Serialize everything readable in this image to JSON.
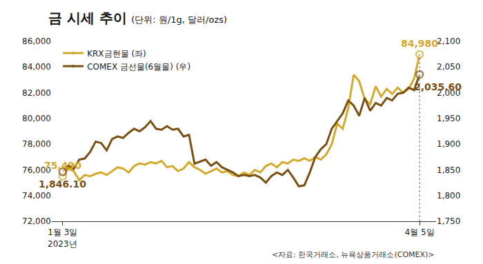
{
  "chart_data": {
    "type": "line",
    "title": "금 시세 추이",
    "subtitle": "(단위: 원/1g, 달러/ozs)",
    "source": "<자료: 한국거래소, 뉴욕상품거래소(COMEX)>",
    "x_sublabel": "2023년",
    "categories": [
      "1월 3일",
      null,
      null,
      null,
      null,
      null,
      null,
      null,
      null,
      null,
      null,
      null,
      null,
      null,
      null,
      null,
      null,
      null,
      null,
      null,
      null,
      null,
      null,
      null,
      null,
      null,
      null,
      null,
      null,
      null,
      null,
      null,
      null,
      null,
      null,
      null,
      null,
      null,
      null,
      null,
      null,
      null,
      null,
      null,
      null,
      null,
      null,
      null,
      null,
      null,
      null,
      null,
      null,
      null,
      null,
      null,
      null,
      null,
      null,
      null,
      null,
      null,
      null,
      null,
      null,
      "4월 5일"
    ],
    "series": [
      {
        "name": "KRX금현물 (좌)",
        "color": "#d4a82a",
        "axis": "y",
        "values": [
          75490,
          76100,
          75900,
          75200,
          75600,
          75500,
          75700,
          75800,
          75600,
          75900,
          76200,
          76100,
          75800,
          76300,
          76500,
          76400,
          76600,
          76500,
          76700,
          76200,
          76300,
          75900,
          76100,
          76600,
          76200,
          76000,
          75700,
          75900,
          76100,
          75800,
          75900,
          75600,
          75500,
          75800,
          75600,
          76000,
          75800,
          76300,
          76500,
          76200,
          76600,
          76500,
          76800,
          76700,
          76900,
          76700,
          77000,
          76800,
          77200,
          78000,
          79600,
          79200,
          80800,
          83400,
          82900,
          81500,
          81100,
          82500,
          81700,
          82300,
          81900,
          82400,
          82000,
          82300,
          83100,
          84980
        ]
      },
      {
        "name": "COMEX 금선물(6월물) (우)",
        "color": "#7a5012",
        "axis": "y2",
        "values": [
          1846.1,
          1858,
          1852,
          1870,
          1872,
          1885,
          1905,
          1902,
          1888,
          1910,
          1915,
          1912,
          1922,
          1930,
          1925,
          1933,
          1945,
          1930,
          1928,
          1935,
          1928,
          1930,
          1915,
          1918,
          1862,
          1866,
          1870,
          1858,
          1865,
          1855,
          1850,
          1845,
          1838,
          1840,
          1838,
          1840,
          1835,
          1825,
          1838,
          1845,
          1840,
          1850,
          1835,
          1818,
          1820,
          1845,
          1875,
          1890,
          1900,
          1930,
          1945,
          1960,
          1985,
          1975,
          1955,
          1990,
          1965,
          1980,
          1975,
          1990,
          1985,
          1998,
          2000,
          2010,
          2005,
          2035.6
        ]
      }
    ],
    "point_labels": [
      {
        "series": 0,
        "x": 0,
        "label": "75,490"
      },
      {
        "series": 1,
        "x": 0,
        "label": "1,846.10"
      },
      {
        "series": 0,
        "x": 65,
        "label": "84,980"
      },
      {
        "series": 1,
        "x": 65,
        "label": "2,035.60"
      }
    ],
    "ylim": [
      72000,
      86000
    ],
    "yticks": [
      {
        "value": 72000,
        "label": "72,000"
      },
      {
        "value": 74000,
        "label": "74,000"
      },
      {
        "value": 76000,
        "label": "76,000"
      },
      {
        "value": 78000,
        "label": "78,000"
      },
      {
        "value": 80000,
        "label": "80,000"
      },
      {
        "value": 82000,
        "label": "82,000"
      },
      {
        "value": 84000,
        "label": "84,000"
      },
      {
        "value": 86000,
        "label": "86,000"
      }
    ],
    "y2lim": [
      1750,
      2100
    ],
    "y2ticks": [
      {
        "value": 1750,
        "label": "1,750"
      },
      {
        "value": 1800,
        "label": "1,800"
      },
      {
        "value": 1850,
        "label": "1,850"
      },
      {
        "value": 1900,
        "label": "1,900"
      },
      {
        "value": 1950,
        "label": "1,950"
      },
      {
        "value": 2000,
        "label": "2,000"
      },
      {
        "value": 2050,
        "label": "2,050"
      },
      {
        "value": 2100,
        "label": "2,100"
      }
    ],
    "grid": false,
    "legend": "top-left"
  }
}
